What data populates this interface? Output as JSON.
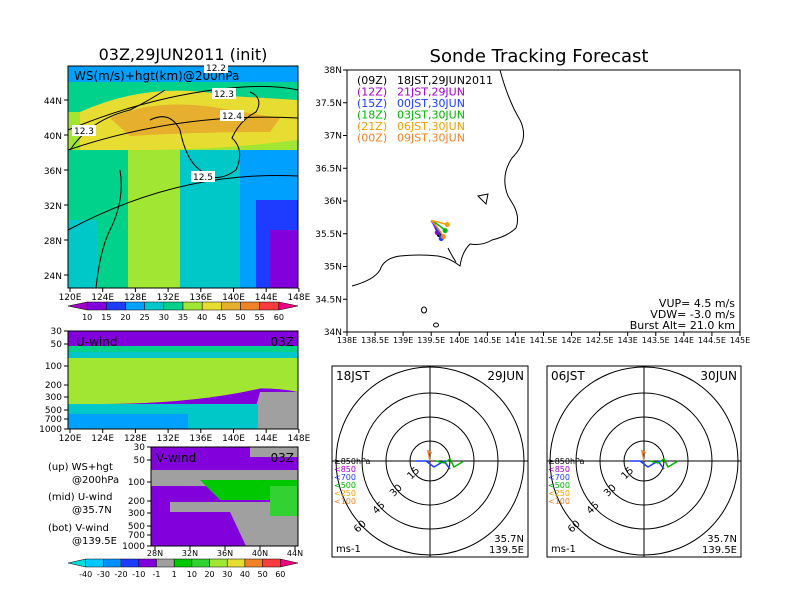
{
  "left_title": "03Z,29JUN2011 (init)",
  "right_title": "Sonde Tracking Forecast",
  "colors": {
    "wind": [
      "#a000c8",
      "#8200dc",
      "#1e3cff",
      "#00a0ff",
      "#00c8c8",
      "#00d28c",
      "#a0e632",
      "#e6dc32",
      "#e6af2d",
      "#f08228",
      "#fa3c3c",
      "#f00082"
    ],
    "vwind": [
      "#00dcdc",
      "#00c8ff",
      "#0090ff",
      "#1e3cff",
      "#8200dc",
      "#a0a0a0",
      "#00c800",
      "#32d232",
      "#a0e632",
      "#e6dc32",
      "#f08228",
      "#fa3c3c",
      "#f00082"
    ],
    "tracks": [
      "#000000",
      "#a000c8",
      "#1e3cff",
      "#00b400",
      "#f0a000",
      "#f08228"
    ]
  },
  "panel_ws": {
    "label": "WS(m/s)+hgt(km)@200hPa",
    "contours": [
      "12.2",
      "12.3",
      "12.3",
      "12.4",
      "12.5"
    ],
    "lat_ticks": [
      "44N",
      "40N",
      "36N",
      "32N",
      "28N",
      "24N"
    ],
    "lon_ticks": [
      "120E",
      "124E",
      "128E",
      "132E",
      "136E",
      "140E",
      "144E",
      "148E"
    ],
    "colorbar": [
      "10",
      "15",
      "20",
      "25",
      "30",
      "35",
      "40",
      "45",
      "50",
      "55",
      "60"
    ]
  },
  "panel_u": {
    "label": "U-wind",
    "time": "03Z",
    "p_ticks": [
      "30",
      "50",
      "100",
      "200",
      "300",
      "500",
      "700",
      "1000"
    ],
    "lon_ticks": [
      "120E",
      "124E",
      "128E",
      "132E",
      "136E",
      "140E",
      "144E",
      "148E"
    ]
  },
  "panel_v": {
    "label": "V-wind",
    "time": "03Z",
    "p_ticks": [
      "30",
      "50",
      "100",
      "200",
      "300",
      "500",
      "700",
      "1000"
    ],
    "lat_ticks": [
      "28N",
      "32N",
      "36N",
      "40N",
      "44N"
    ],
    "colorbar": [
      "-40",
      "-30",
      "-20",
      "-10",
      "-1",
      "1",
      "10",
      "20",
      "30",
      "40",
      "50",
      "60"
    ]
  },
  "legend_notes": [
    {
      "a": "(up) WS+hgt",
      "b": "@200hPa"
    },
    {
      "a": "(mid) U-wind",
      "b": "@35.7N"
    },
    {
      "a": "(bot) V-wind",
      "b": "@139.5E"
    }
  ],
  "track_map": {
    "lat_ticks": [
      "38N",
      "37.5N",
      "37N",
      "36.5N",
      "36N",
      "35.5N",
      "35N",
      "34.5N",
      "34N"
    ],
    "lon_ticks": [
      "138E",
      "138.5E",
      "139E",
      "139.5E",
      "140E",
      "140.5E",
      "141E",
      "141.5E",
      "142E",
      "142.5E",
      "143E",
      "143.5E",
      "144E",
      "144.5E",
      "145E"
    ],
    "launches": [
      {
        "z": "(09Z)",
        "t": "18JST,29JUN2011"
      },
      {
        "z": "(12Z)",
        "t": "21JST,29JUN"
      },
      {
        "z": "(15Z)",
        "t": "00JST,30JUN"
      },
      {
        "z": "(18Z)",
        "t": "03JST,30JUN"
      },
      {
        "z": "(21Z)",
        "t": "06JST,30JUN"
      },
      {
        "z": "(00Z)",
        "t": "09JST,30JUN"
      }
    ],
    "vup": "VUP= 4.5 m/s",
    "vdw": "VDW= -3.0 m/s",
    "burst": "Burst Alt= 21.0 km"
  },
  "polar_left": {
    "time": "18JST",
    "date": "29JUN",
    "ring_labels": [
      "15",
      "30",
      "45",
      "60"
    ],
    "levels": [
      "≥850hPa",
      "<850",
      "<700",
      "<500",
      "<250",
      "<100"
    ],
    "unit": "ms-1",
    "lat": "35.7N",
    "lon": "139.5E"
  },
  "polar_right": {
    "time": "06JST",
    "date": "30JUN",
    "ring_labels": [
      "15",
      "30",
      "45",
      "60"
    ],
    "levels": [
      "≥850hPa",
      "<850",
      "<700",
      "<500",
      "<250",
      "<100"
    ],
    "unit": "ms-1",
    "lat": "35.7N",
    "lon": "139.5E"
  },
  "chart_data": {
    "type": "heatmap",
    "title": "03Z,29JUN2011 (init)",
    "panels": [
      {
        "name": "WS(m/s)+hgt(km)@200hPa",
        "x_range": [
          "120E",
          "148E"
        ],
        "y_range": [
          "23N",
          "47N"
        ],
        "colorbar_levels": [
          10,
          15,
          20,
          25,
          30,
          35,
          40,
          45,
          50,
          55,
          60
        ],
        "contour_labels_km": [
          12.2,
          12.3,
          12.3,
          12.4,
          12.5
        ]
      },
      {
        "name": "U-wind",
        "x_range": [
          "120E",
          "148E"
        ],
        "y_range_hPa": [
          1000,
          30
        ]
      },
      {
        "name": "V-wind",
        "x_range": [
          "28N",
          "44N"
        ],
        "y_range_hPa": [
          1000,
          30
        ],
        "colorbar_levels": [
          -40,
          -30,
          -20,
          -10,
          -1,
          1,
          10,
          20,
          30,
          40,
          50,
          60
        ]
      },
      {
        "name": "Sonde Tracking Forecast",
        "x_range": [
          "138E",
          "145E"
        ],
        "y_range": [
          "34N",
          "38N"
        ],
        "vup_ms": 4.5,
        "vdw_ms": -3.0,
        "burst_alt_km": 21.0,
        "launch_lon": 139.5,
        "launch_lat": 35.7
      }
    ]
  }
}
